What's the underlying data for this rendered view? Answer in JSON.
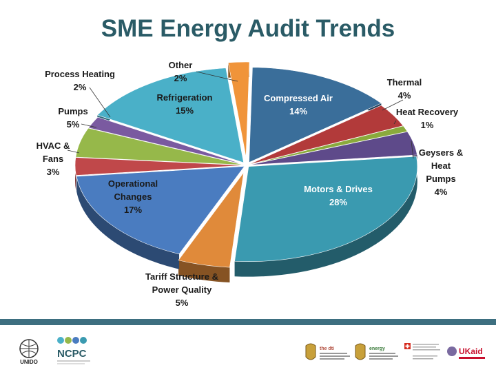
{
  "title": "SME Energy Audit Trends",
  "chart_data": {
    "type": "pie",
    "title": "SME Energy Audit Trends",
    "slices": [
      {
        "name": "Compressed Air",
        "value": 14,
        "label": "14%",
        "color": "#3a6e9a"
      },
      {
        "name": "Thermal",
        "value": 4,
        "label": "4%",
        "color": "#b23a3a"
      },
      {
        "name": "Heat Recovery",
        "value": 1,
        "label": "1%",
        "color": "#8aaa3c"
      },
      {
        "name": "Geysers & Heat Pumps",
        "value": 4,
        "label": "4%",
        "color": "#5e4a8a"
      },
      {
        "name": "Motors & Drives",
        "value": 28,
        "label": "28%",
        "color": "#3a9ab0"
      },
      {
        "name": "Tariff Structure & Power Quality",
        "value": 5,
        "label": "5%",
        "color": "#e08a3a"
      },
      {
        "name": "Operational Changes",
        "value": 17,
        "label": "17%",
        "color": "#4a7cc0"
      },
      {
        "name": "HVAC & Fans",
        "value": 3,
        "label": "3%",
        "color": "#c0484a"
      },
      {
        "name": "Pumps",
        "value": 5,
        "label": "5%",
        "color": "#96b84a"
      },
      {
        "name": "Process Heating",
        "value": 2,
        "label": "2%",
        "color": "#7a5aa0"
      },
      {
        "name": "Refrigeration",
        "value": 15,
        "label": "15%",
        "color": "#4ab0c8"
      },
      {
        "name": "Other",
        "value": 2,
        "label": "2%",
        "color": "#f0943a"
      }
    ]
  },
  "labels": {
    "compressed_air_name": "Compressed Air",
    "compressed_air_pct": "14%",
    "thermal_name": "Thermal",
    "thermal_pct": "4%",
    "heat_recovery_name": "Heat Recovery",
    "heat_recovery_pct": "1%",
    "geysers_l1": "Geysers &",
    "geysers_l2": "Heat",
    "geysers_l3": "Pumps",
    "geysers_pct": "4%",
    "motors_name": "Motors & Drives",
    "motors_pct": "28%",
    "tariff_l1": "Tariff Structure &",
    "tariff_l2": "Power Quality",
    "tariff_pct": "5%",
    "operational_l1": "Operational",
    "operational_l2": "Changes",
    "operational_pct": "17%",
    "hvac_l1": "HVAC &",
    "hvac_l2": "Fans",
    "hvac_pct": "3%",
    "pumps_name": "Pumps",
    "pumps_pct": "5%",
    "process_heating_name": "Process Heating",
    "process_heating_pct": "2%",
    "refrigeration_name": "Refrigeration",
    "refrigeration_pct": "15%",
    "other_name": "Other",
    "other_pct": "2%"
  },
  "footer": {
    "unido": "UNIDO",
    "ncpc": "NCPC",
    "dti": "the dti",
    "energy": "energy",
    "ukaid": "UKaid"
  }
}
